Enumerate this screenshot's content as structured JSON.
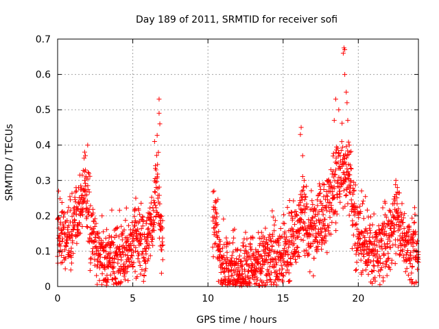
{
  "chart_data": {
    "type": "scatter",
    "title": "Day 189 of 2011, SRMTID for receiver sofi",
    "xlabel": "GPS time / hours",
    "ylabel": "SRMTID / TECUs",
    "xlim": [
      0,
      24
    ],
    "ylim": [
      0,
      0.7
    ],
    "xticks": [
      0,
      5,
      10,
      15,
      20
    ],
    "xtick_labels": [
      "0",
      "5",
      "10",
      "15",
      "20"
    ],
    "yticks": [
      0,
      0.1,
      0.2,
      0.3,
      0.4,
      0.5,
      0.6,
      0.7
    ],
    "ytick_labels": [
      "0",
      "0.1",
      "0.2",
      "0.3",
      "0.4",
      "0.5",
      "0.6",
      "0.7"
    ],
    "grid": true,
    "marker": "+",
    "marker_color": "#ff0000",
    "series": [
      {
        "name": "SRMTID",
        "trend": [
          [
            0.0,
            0.17
          ],
          [
            0.5,
            0.14
          ],
          [
            1.0,
            0.16
          ],
          [
            1.5,
            0.22
          ],
          [
            1.8,
            0.3
          ],
          [
            2.2,
            0.15
          ],
          [
            3.0,
            0.08
          ],
          [
            4.0,
            0.08
          ],
          [
            4.7,
            0.1
          ],
          [
            5.2,
            0.14
          ],
          [
            5.8,
            0.1
          ],
          [
            6.3,
            0.17
          ],
          [
            6.6,
            0.3
          ],
          [
            6.9,
            0.13
          ],
          [
            10.5,
            0.17
          ],
          [
            10.8,
            0.07
          ],
          [
            12.0,
            0.04
          ],
          [
            13.0,
            0.06
          ],
          [
            14.0,
            0.08
          ],
          [
            15.0,
            0.09
          ],
          [
            15.5,
            0.13
          ],
          [
            16.0,
            0.16
          ],
          [
            16.3,
            0.22
          ],
          [
            16.7,
            0.15
          ],
          [
            17.2,
            0.18
          ],
          [
            17.8,
            0.2
          ],
          [
            18.5,
            0.28
          ],
          [
            19.0,
            0.33
          ],
          [
            19.4,
            0.32
          ],
          [
            19.8,
            0.18
          ],
          [
            20.3,
            0.12
          ],
          [
            21.0,
            0.1
          ],
          [
            21.5,
            0.1
          ],
          [
            22.0,
            0.13
          ],
          [
            22.6,
            0.2
          ],
          [
            23.0,
            0.12
          ],
          [
            24.0,
            0.1
          ]
        ],
        "spikes": [
          [
            1.8,
            0.38
          ],
          [
            1.85,
            0.37
          ],
          [
            2.0,
            0.4
          ],
          [
            5.2,
            0.25
          ],
          [
            6.45,
            0.41
          ],
          [
            6.55,
            0.33
          ],
          [
            6.75,
            0.53
          ],
          [
            6.75,
            0.49
          ],
          [
            6.8,
            0.46
          ],
          [
            10.4,
            0.27
          ],
          [
            10.55,
            0.24
          ],
          [
            16.15,
            0.43
          ],
          [
            16.2,
            0.45
          ],
          [
            16.3,
            0.37
          ],
          [
            16.4,
            0.3
          ],
          [
            18.4,
            0.47
          ],
          [
            18.5,
            0.53
          ],
          [
            18.7,
            0.5
          ],
          [
            19.0,
            0.66
          ],
          [
            19.05,
            0.675
          ],
          [
            19.1,
            0.67
          ],
          [
            19.1,
            0.6
          ],
          [
            19.2,
            0.55
          ],
          [
            19.25,
            0.52
          ],
          [
            19.3,
            0.47
          ],
          [
            19.4,
            0.4
          ],
          [
            22.5,
            0.3
          ],
          [
            22.6,
            0.28
          ]
        ],
        "gaps": [
          [
            7.0,
            10.3
          ]
        ],
        "spread": 0.05
      }
    ]
  }
}
